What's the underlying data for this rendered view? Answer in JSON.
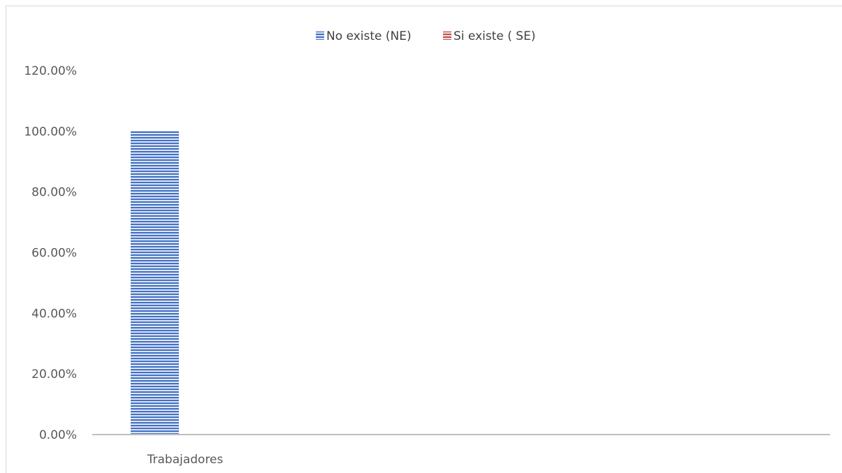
{
  "chart_data": {
    "type": "bar",
    "title": "",
    "xlabel": "",
    "ylabel": "",
    "categories": [
      "Trabajadores"
    ],
    "series": [
      {
        "name": "No existe (NE)",
        "values": [
          1.0
        ],
        "color": "#4472c4"
      },
      {
        "name": "Si existe ( SE)",
        "values": [
          0.0
        ],
        "color": "#c0504d"
      }
    ],
    "ylim": [
      0,
      1.2
    ],
    "yticks": [
      "0.00%",
      "20.00%",
      "40.00%",
      "60.00%",
      "80.00%",
      "100.00%",
      "120.00%"
    ],
    "grid": false,
    "legend_position": "top",
    "bar_pattern": "horizontal-stripes"
  }
}
